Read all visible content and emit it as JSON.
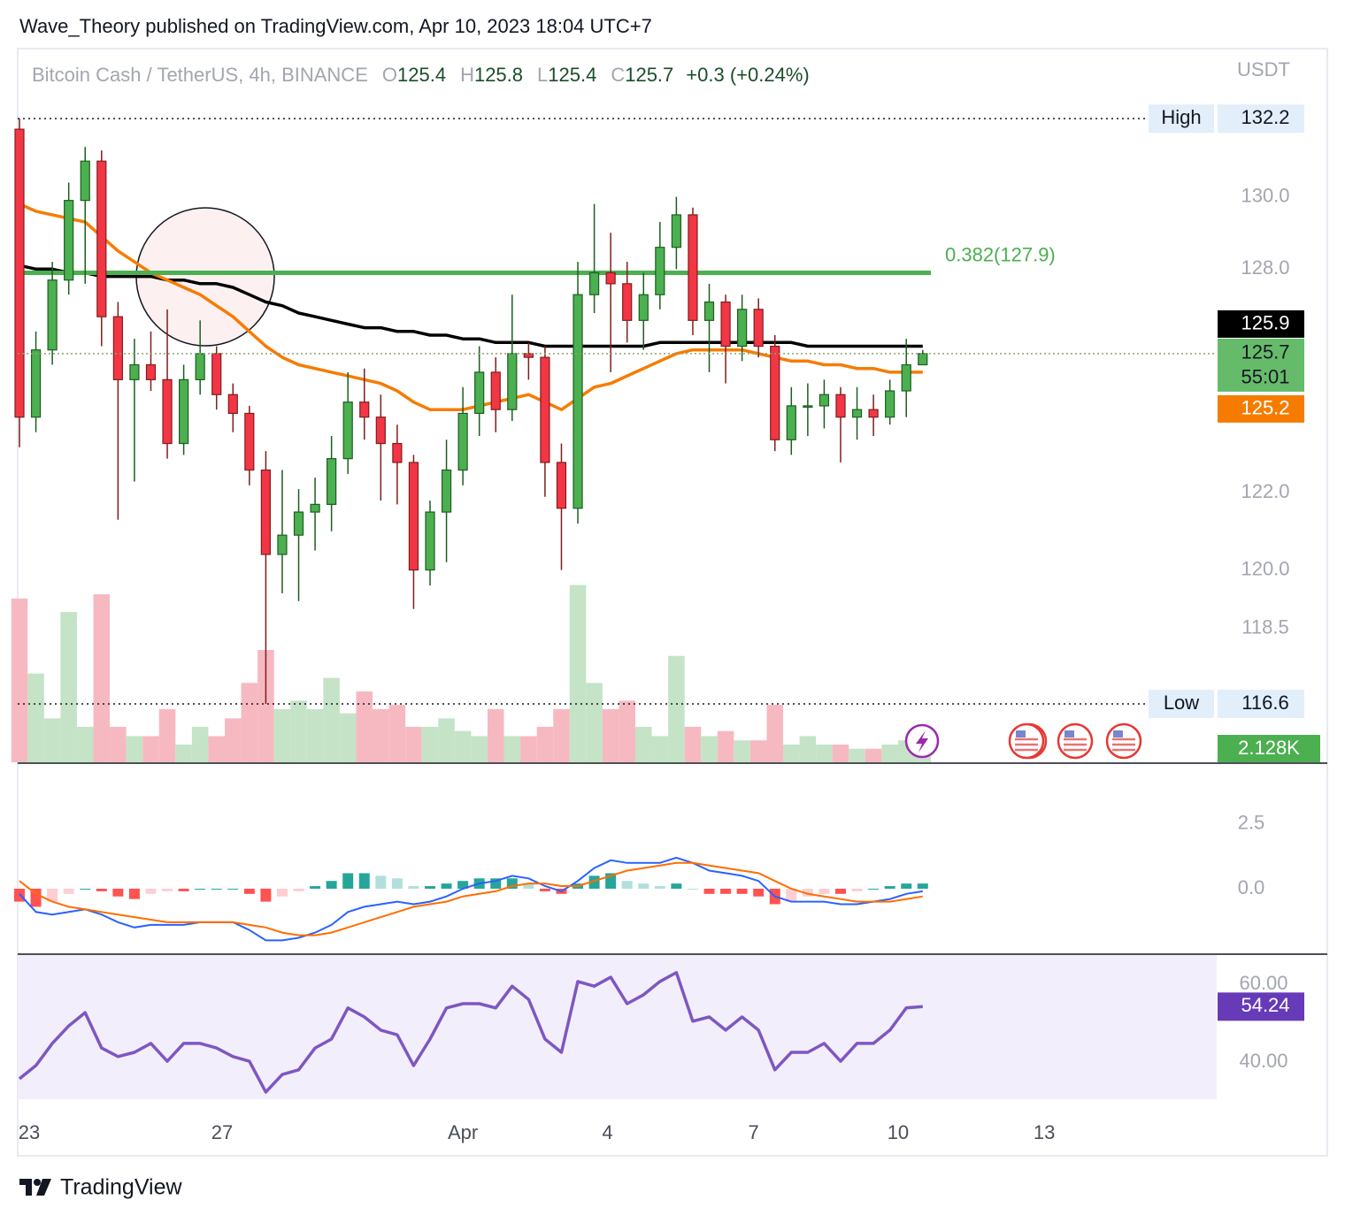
{
  "header": {
    "publisher": "Wave_Theory published on TradingView.com, Apr 10, 2023 18:04 UTC+7"
  },
  "footer": {
    "brand": "TradingView"
  },
  "chart_data": [
    {
      "type": "candlestick",
      "title": "Bitcoin Cash / TetherUS, 4h, BINANCE",
      "ohlc": [
        {
          "label": "O",
          "value": 125.4
        },
        {
          "label": "H",
          "value": 125.8
        },
        {
          "label": "L",
          "value": 125.4
        },
        {
          "label": "C",
          "value": 125.7
        }
      ],
      "change": "+0.3 (+0.24%)",
      "currency": "USDT",
      "log_scale": true,
      "ylim": [
        115.15,
        134.2
      ],
      "yticks": [
        118.5,
        {
          "value": 120,
          "label": "120.0"
        },
        {
          "value": 122,
          "label": "122.0"
        },
        {
          "value": 128,
          "label": "128.0"
        },
        {
          "value": 130,
          "label": "130.0"
        }
      ],
      "xlim": [
        -0.108,
        72.9
      ],
      "xticks": [
        {
          "value": 0.59,
          "label": "23"
        },
        {
          "value": 12.34,
          "label": "27"
        },
        {
          "value": 27.0,
          "label": "Apr"
        },
        {
          "value": 35.8,
          "label": "4"
        },
        {
          "value": 44.7,
          "label": "7"
        },
        {
          "value": 53.5,
          "label": "10"
        },
        {
          "value": 62.4,
          "label": "13"
        }
      ],
      "up_color": "#4caf50",
      "up_border": "#1b5e20",
      "down_color": "#f23645",
      "down_border": "#7f1d1d",
      "candles": {
        "open": [
          131.9,
          124.0,
          125.8,
          127.7,
          129.9,
          131.0,
          126.7,
          125.0,
          125.4,
          125.0,
          123.3,
          125.0,
          125.7,
          124.6,
          124.1,
          122.6,
          120.4,
          120.9,
          121.5,
          121.7,
          122.9,
          124.4,
          124.0,
          123.3,
          122.8,
          120.0,
          121.5,
          122.6,
          124.1,
          125.2,
          124.2,
          125.7,
          125.6,
          122.8,
          121.6,
          127.3,
          127.9,
          127.6,
          126.6,
          127.3,
          128.6,
          129.5,
          126.6,
          127.1,
          125.9,
          126.9,
          125.9,
          123.4,
          124.3,
          124.3,
          124.6,
          124.0,
          124.2,
          124.0,
          124.7,
          125.4
        ],
        "high": [
          132.2,
          126.3,
          128.2,
          130.4,
          131.4,
          131.3,
          127.1,
          126.1,
          126.3,
          126.9,
          125.4,
          126.6,
          125.9,
          124.9,
          124.3,
          123.1,
          122.6,
          122.1,
          122.4,
          123.5,
          125.2,
          125.3,
          124.6,
          123.8,
          123.0,
          121.8,
          123.4,
          124.8,
          125.9,
          125.6,
          127.3,
          126.0,
          125.9,
          123.3,
          128.2,
          129.8,
          129.0,
          128.2,
          127.9,
          129.3,
          130.0,
          129.7,
          127.6,
          127.3,
          127.3,
          127.2,
          126.2,
          124.8,
          124.9,
          125.0,
          124.8,
          124.8,
          124.6,
          125.0,
          126.1,
          125.8
        ],
        "low": [
          123.2,
          123.6,
          125.4,
          127.3,
          127.6,
          125.9,
          121.3,
          122.3,
          124.7,
          122.9,
          123.0,
          124.6,
          124.2,
          123.6,
          122.2,
          116.6,
          119.4,
          119.2,
          120.5,
          121.0,
          122.5,
          123.4,
          121.8,
          121.7,
          119.0,
          119.6,
          120.2,
          122.2,
          123.5,
          123.6,
          123.9,
          125.0,
          121.9,
          120.0,
          121.2,
          126.8,
          125.2,
          126.0,
          125.8,
          126.9,
          128.0,
          126.2,
          125.2,
          124.9,
          125.5,
          125.6,
          123.1,
          123.0,
          123.5,
          123.7,
          122.8,
          123.4,
          123.5,
          123.8,
          124.0,
          125.4
        ],
        "close": [
          124.0,
          125.8,
          127.7,
          129.9,
          131.0,
          126.7,
          125.0,
          125.4,
          125.0,
          123.3,
          125.0,
          125.7,
          124.6,
          124.1,
          122.6,
          120.4,
          120.9,
          121.5,
          121.7,
          122.9,
          124.4,
          124.0,
          123.3,
          122.8,
          120.0,
          121.5,
          122.6,
          124.1,
          125.2,
          124.2,
          125.7,
          125.6,
          122.8,
          121.6,
          127.3,
          127.9,
          127.6,
          126.6,
          127.3,
          128.6,
          129.5,
          126.6,
          127.1,
          125.9,
          126.9,
          125.9,
          123.4,
          124.3,
          124.3,
          124.6,
          124.0,
          124.2,
          124.0,
          124.7,
          125.4,
          125.7
        ]
      },
      "ma_lines": [
        {
          "color": "#000000",
          "values": [
            128.1,
            128.0,
            128.0,
            127.9,
            127.9,
            127.8,
            127.8,
            127.8,
            127.8,
            127.7,
            127.7,
            127.6,
            127.6,
            127.5,
            127.3,
            127.1,
            127.0,
            126.8,
            126.7,
            126.6,
            126.5,
            126.4,
            126.4,
            126.3,
            126.3,
            126.2,
            126.2,
            126.1,
            126.1,
            126.0,
            126.0,
            126.0,
            125.9,
            125.9,
            125.9,
            125.9,
            125.9,
            125.9,
            125.9,
            126.0,
            126.0,
            126.0,
            126.0,
            126.0,
            126.0,
            126.0,
            126.0,
            126.0,
            125.9,
            125.9,
            125.9,
            125.9,
            125.9,
            125.9,
            125.9,
            125.9
          ]
        },
        {
          "color": "#f57c00",
          "values": [
            129.8,
            129.6,
            129.5,
            129.4,
            129.3,
            128.9,
            128.5,
            128.2,
            127.9,
            127.7,
            127.5,
            127.3,
            127.0,
            126.7,
            126.3,
            125.9,
            125.6,
            125.4,
            125.3,
            125.2,
            125.1,
            125.0,
            124.9,
            124.7,
            124.4,
            124.2,
            124.2,
            124.2,
            124.3,
            124.4,
            124.5,
            124.6,
            124.4,
            124.2,
            124.5,
            124.8,
            124.9,
            125.1,
            125.3,
            125.5,
            125.7,
            125.8,
            125.8,
            125.8,
            125.8,
            125.7,
            125.6,
            125.5,
            125.5,
            125.4,
            125.4,
            125.3,
            125.3,
            125.2,
            125.2,
            125.2
          ]
        }
      ],
      "volume": {
        "ylim": [
          0,
          22
        ],
        "up_color": "#c5e3c6",
        "down_color": "#f7b9c1",
        "label": "2.128K",
        "values": [
          19.4,
          10.5,
          5.2,
          17.8,
          4.2,
          19.9,
          4.2,
          3.1,
          3.1,
          6.3,
          2.1,
          4.2,
          3.1,
          5.2,
          9.4,
          13.3,
          6.3,
          7.3,
          6.3,
          10.0,
          5.8,
          8.4,
          6.3,
          6.8,
          4.2,
          4.2,
          5.2,
          3.7,
          3.1,
          6.3,
          3.1,
          3.1,
          4.2,
          6.3,
          21.0,
          9.4,
          6.3,
          7.3,
          4.2,
          3.1,
          12.6,
          4.2,
          3.1,
          3.7,
          2.6,
          2.6,
          6.8,
          2.1,
          3.1,
          2.1,
          2.1,
          1.6,
          1.6,
          2.1,
          2.6,
          2.128
        ]
      },
      "fib": {
        "label": "0.382(127.9)",
        "value": 127.9,
        "color": "#4caf50"
      },
      "high_label": "High",
      "low_label": "Low",
      "countdown": "55:01"
    },
    {
      "type": "macd",
      "ylim": [
        -2.5,
        4.62
      ],
      "yticks": [
        {
          "value": 0,
          "label": "0.0"
        },
        2.5
      ],
      "macd": {
        "color": "#2962ff",
        "values": [
          -0.2,
          -0.9,
          -1.0,
          -0.9,
          -0.8,
          -1.0,
          -1.3,
          -1.5,
          -1.4,
          -1.4,
          -1.4,
          -1.3,
          -1.3,
          -1.3,
          -1.6,
          -2.0,
          -2.0,
          -1.9,
          -1.7,
          -1.4,
          -0.9,
          -0.7,
          -0.6,
          -0.5,
          -0.6,
          -0.5,
          -0.3,
          0.0,
          0.2,
          0.3,
          0.5,
          0.4,
          0.1,
          -0.1,
          0.3,
          0.8,
          1.1,
          1.0,
          1.0,
          1.0,
          1.2,
          1.0,
          0.7,
          0.6,
          0.5,
          0.3,
          -0.3,
          -0.5,
          -0.5,
          -0.5,
          -0.6,
          -0.6,
          -0.5,
          -0.4,
          -0.2,
          -0.1
        ]
      },
      "signal": {
        "color": "#ff6d00",
        "values": [
          0.3,
          -0.2,
          -0.5,
          -0.7,
          -0.8,
          -0.9,
          -1.0,
          -1.1,
          -1.2,
          -1.3,
          -1.3,
          -1.3,
          -1.3,
          -1.3,
          -1.4,
          -1.5,
          -1.7,
          -1.8,
          -1.8,
          -1.7,
          -1.5,
          -1.3,
          -1.1,
          -0.9,
          -0.7,
          -0.6,
          -0.5,
          -0.3,
          -0.2,
          -0.1,
          0.1,
          0.2,
          0.2,
          0.1,
          0.1,
          0.3,
          0.5,
          0.7,
          0.8,
          0.9,
          1.0,
          1.0,
          0.9,
          0.8,
          0.7,
          0.6,
          0.3,
          0.0,
          -0.2,
          -0.3,
          -0.4,
          -0.5,
          -0.5,
          -0.5,
          -0.4,
          -0.3
        ]
      },
      "histogram": {
        "colors": [
          "#26a69a",
          "#b2dfdb",
          "#ff5252",
          "#ffcdd2"
        ],
        "values": [
          -0.5,
          -0.7,
          -0.5,
          -0.2,
          0.0,
          -0.1,
          -0.3,
          -0.4,
          -0.2,
          -0.1,
          -0.1,
          0.0,
          0.0,
          0.0,
          -0.2,
          -0.5,
          -0.3,
          -0.1,
          0.1,
          0.3,
          0.6,
          0.6,
          0.5,
          0.4,
          0.1,
          0.1,
          0.2,
          0.3,
          0.4,
          0.4,
          0.4,
          0.2,
          -0.1,
          -0.2,
          0.2,
          0.5,
          0.6,
          0.3,
          0.2,
          0.1,
          0.2,
          0.0,
          -0.2,
          -0.2,
          -0.2,
          -0.3,
          -0.6,
          -0.5,
          -0.3,
          -0.2,
          -0.2,
          -0.1,
          0.0,
          0.1,
          0.2,
          0.2
        ]
      }
    },
    {
      "type": "line",
      "ylim": [
        30.45,
        67.5
      ],
      "yticks": [
        {
          "value": 40,
          "label": "40.00"
        },
        {
          "value": 60,
          "label": "60.00"
        }
      ],
      "color": "#7e57c2",
      "values": [
        35.7,
        39.1,
        44.8,
        49.3,
        52.7,
        43.6,
        41.4,
        42.5,
        44.8,
        40.2,
        44.8,
        44.8,
        43.6,
        41.4,
        40.2,
        32.3,
        36.8,
        38.0,
        43.6,
        45.9,
        53.9,
        51.6,
        48.2,
        47.0,
        39.1,
        45.9,
        53.9,
        55.0,
        55.0,
        53.9,
        59.5,
        56.1,
        45.9,
        42.5,
        60.7,
        59.5,
        61.8,
        55.0,
        57.3,
        60.7,
        63.0,
        50.5,
        51.6,
        48.2,
        51.6,
        48.2,
        38.0,
        42.5,
        42.5,
        44.8,
        40.2,
        44.8,
        44.8,
        48.2,
        53.9,
        54.24
      ]
    }
  ]
}
